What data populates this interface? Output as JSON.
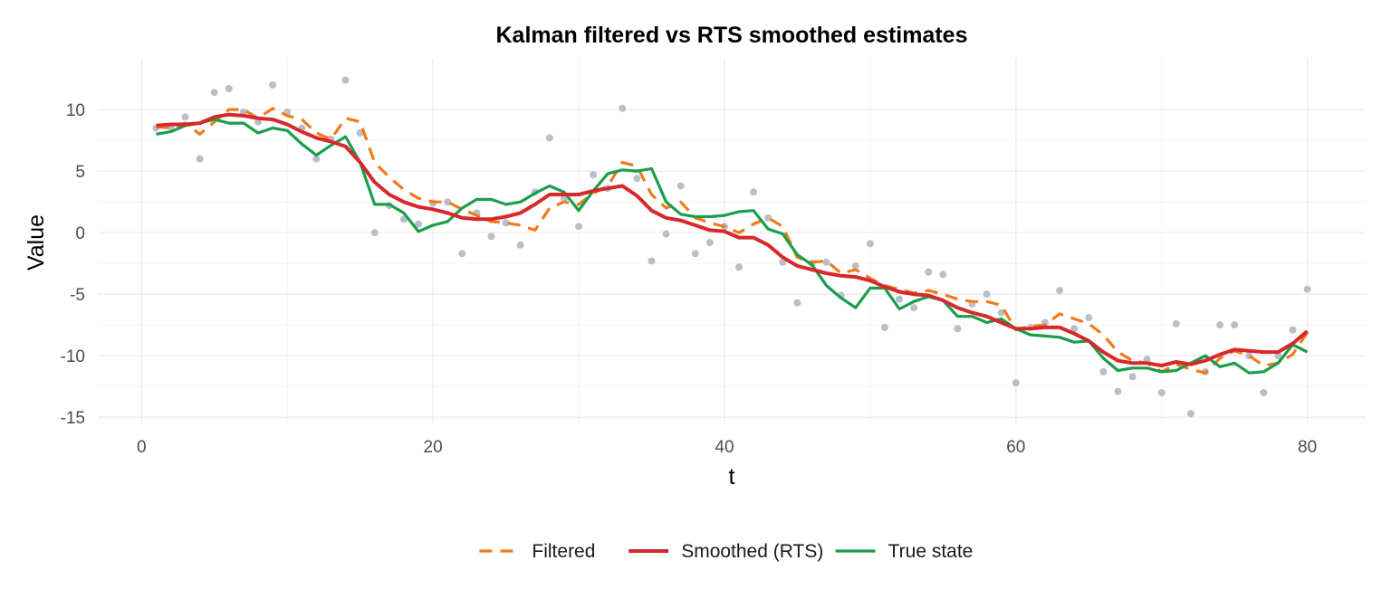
{
  "chart_data": {
    "type": "line",
    "title": "Kalman filtered vs RTS smoothed estimates",
    "xlabel": "t",
    "ylabel": "Value",
    "xlim": [
      -3,
      84
    ],
    "ylim": [
      -15.5,
      14.2
    ],
    "x_ticks": [
      0,
      20,
      40,
      60,
      80
    ],
    "y_ticks": [
      10,
      5,
      0,
      -5,
      -10,
      -15
    ],
    "grid": true,
    "legend_position": "bottom",
    "x": [
      1,
      2,
      3,
      4,
      5,
      6,
      7,
      8,
      9,
      10,
      11,
      12,
      13,
      14,
      15,
      16,
      17,
      18,
      19,
      20,
      21,
      22,
      23,
      24,
      25,
      26,
      27,
      28,
      29,
      30,
      31,
      32,
      33,
      34,
      35,
      36,
      37,
      38,
      39,
      40,
      41,
      42,
      43,
      44,
      45,
      46,
      47,
      48,
      49,
      50,
      51,
      52,
      53,
      54,
      55,
      56,
      57,
      58,
      59,
      60,
      61,
      62,
      63,
      64,
      65,
      66,
      67,
      68,
      69,
      70,
      71,
      72,
      73,
      74,
      75,
      76,
      77,
      78,
      79,
      80
    ],
    "observations": {
      "name": "",
      "color": "#b7bfcb",
      "values": [
        8.5,
        8.6,
        9.4,
        6.0,
        11.4,
        11.7,
        9.8,
        9.0,
        12.0,
        9.8,
        8.5,
        6.0,
        7.6,
        12.4,
        8.1,
        0.0,
        2.2,
        1.1,
        0.7,
        2.4,
        2.5,
        -1.7,
        1.6,
        -0.3,
        0.8,
        -1.0,
        3.3,
        7.7,
        2.8,
        0.5,
        4.7,
        3.6,
        10.1,
        4.4,
        -2.3,
        -0.1,
        3.8,
        -1.7,
        -0.8,
        0.5,
        -2.8,
        3.3,
        1.2,
        -2.4,
        -5.7,
        -2.5,
        -2.4,
        -5.1,
        -2.7,
        -0.9,
        -7.7,
        -5.4,
        -6.1,
        -3.2,
        -3.4,
        -7.8,
        -5.8,
        -5.0,
        -6.5,
        -12.2,
        -7.7,
        -7.3,
        -4.7,
        -7.8,
        -6.9,
        -11.3,
        -12.9,
        -11.7,
        -10.3,
        -13.0,
        -7.4,
        -14.7,
        -11.3,
        -7.5,
        -7.5,
        -10.0,
        -13.0,
        -10.0,
        -7.9,
        -4.6
      ]
    },
    "series": [
      {
        "name": "Filtered",
        "color": "#f07a1c",
        "dash": "dashed",
        "values": [
          8.6,
          8.5,
          8.9,
          8.0,
          9.0,
          10.0,
          10.0,
          9.3,
          10.1,
          9.5,
          9.2,
          8.1,
          7.6,
          9.3,
          9.0,
          5.7,
          4.5,
          3.5,
          2.8,
          2.5,
          2.5,
          1.9,
          1.4,
          0.9,
          0.8,
          0.6,
          0.2,
          2.0,
          2.5,
          2.3,
          3.2,
          3.8,
          5.7,
          5.4,
          3.1,
          2.0,
          2.5,
          1.2,
          0.8,
          0.5,
          0.0,
          0.7,
          1.2,
          0.5,
          -2.0,
          -2.4,
          -2.3,
          -3.3,
          -3.0,
          -3.7,
          -4.3,
          -4.6,
          -4.9,
          -4.7,
          -5.0,
          -5.4,
          -5.6,
          -5.6,
          -5.9,
          -7.9,
          -7.6,
          -7.5,
          -6.6,
          -7.0,
          -7.4,
          -8.3,
          -9.7,
          -10.4,
          -10.6,
          -11.3,
          -10.7,
          -11.1,
          -11.4,
          -10.2,
          -9.6,
          -10.0,
          -10.8,
          -10.6,
          -9.9,
          -8.1
        ]
      },
      {
        "name": "Smoothed (RTS)",
        "color": "#d7282b",
        "dash": "solid",
        "values": [
          8.7,
          8.8,
          8.8,
          8.9,
          9.4,
          9.6,
          9.5,
          9.3,
          9.2,
          8.8,
          8.2,
          7.7,
          7.4,
          7.0,
          5.7,
          4.1,
          3.1,
          2.5,
          2.1,
          1.9,
          1.6,
          1.2,
          1.1,
          1.1,
          1.3,
          1.6,
          2.3,
          3.1,
          3.1,
          3.1,
          3.4,
          3.6,
          3.8,
          3.0,
          1.8,
          1.2,
          1.0,
          0.6,
          0.2,
          0.1,
          -0.4,
          -0.4,
          -1.0,
          -2.0,
          -2.7,
          -3.0,
          -3.3,
          -3.5,
          -3.6,
          -3.9,
          -4.4,
          -4.8,
          -5.0,
          -5.1,
          -5.5,
          -6.1,
          -6.5,
          -6.8,
          -7.3,
          -7.8,
          -7.8,
          -7.7,
          -7.7,
          -8.2,
          -8.8,
          -9.7,
          -10.4,
          -10.6,
          -10.6,
          -10.8,
          -10.5,
          -10.7,
          -10.4,
          -9.9,
          -9.5,
          -9.6,
          -9.7,
          -9.7,
          -9.0,
          -8.0
        ]
      },
      {
        "name": "True state",
        "color": "#1a9e4a",
        "dash": "solid",
        "values": [
          8.0,
          8.2,
          8.7,
          8.9,
          9.2,
          8.9,
          8.9,
          8.1,
          8.5,
          8.3,
          7.2,
          6.3,
          7.1,
          7.8,
          5.7,
          2.3,
          2.3,
          1.6,
          0.1,
          0.6,
          0.9,
          2.0,
          2.7,
          2.7,
          2.3,
          2.5,
          3.2,
          3.8,
          3.3,
          1.8,
          3.4,
          4.8,
          5.1,
          5.0,
          5.2,
          2.5,
          1.5,
          1.3,
          1.3,
          1.4,
          1.7,
          1.8,
          0.3,
          -0.1,
          -1.8,
          -2.6,
          -4.3,
          -5.3,
          -6.1,
          -4.5,
          -4.5,
          -6.2,
          -5.6,
          -5.2,
          -5.5,
          -6.8,
          -6.8,
          -7.3,
          -7.0,
          -7.8,
          -8.3,
          -8.4,
          -8.5,
          -8.9,
          -8.8,
          -10.2,
          -11.2,
          -11.0,
          -11.0,
          -11.3,
          -11.2,
          -10.6,
          -10.0,
          -10.9,
          -10.6,
          -11.4,
          -11.3,
          -10.6,
          -9.1,
          -9.7
        ]
      }
    ]
  }
}
